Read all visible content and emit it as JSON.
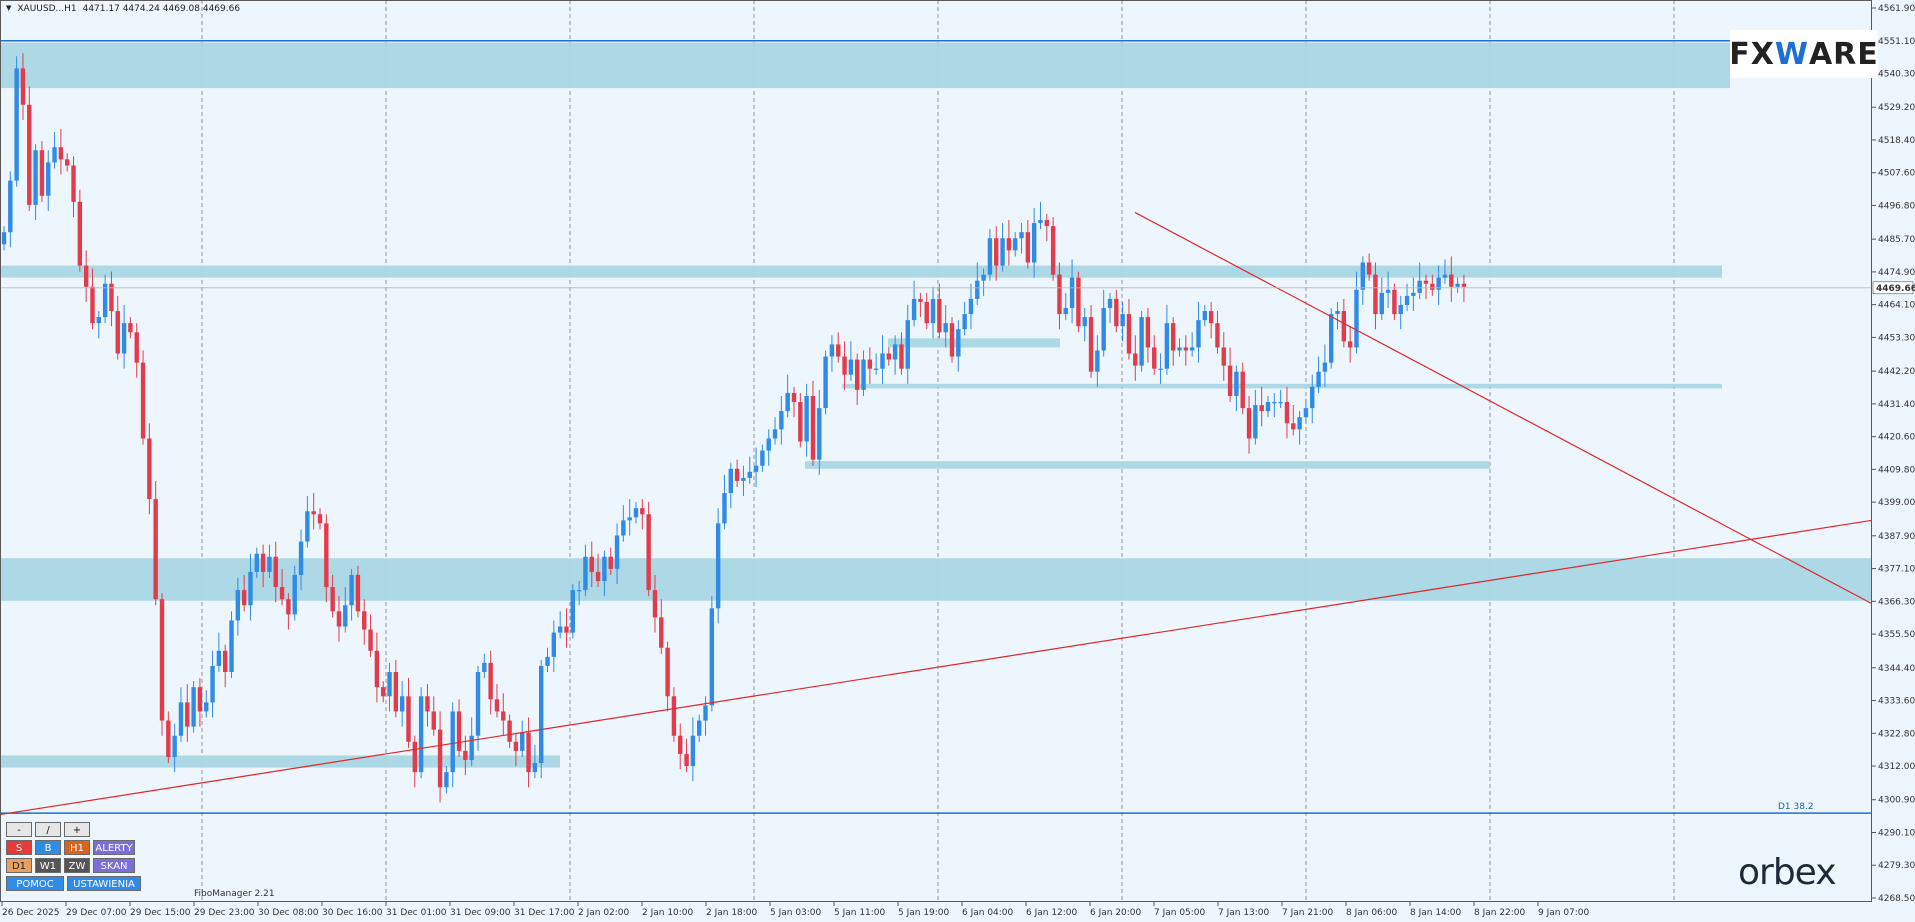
{
  "header": {
    "symbol": "XAUUSD...H1",
    "ohlc": "4471.17 4474.24 4469.08 4469.66"
  },
  "price_axis": {
    "ticks": [
      4561.9,
      4551.1,
      4540.3,
      4529.2,
      4518.4,
      4507.6,
      4496.8,
      4485.7,
      4474.9,
      4464.1,
      4453.3,
      4442.2,
      4431.4,
      4420.6,
      4409.8,
      4399.0,
      4387.9,
      4377.1,
      4366.3,
      4355.5,
      4344.4,
      4333.6,
      4322.8,
      4312.0,
      4300.9,
      4290.1,
      4279.3,
      4268.5
    ],
    "current_price_label": "4469.66"
  },
  "time_axis": {
    "labels": [
      "26 Dec 2025",
      "29 Dec 07:00",
      "29 Dec 15:00",
      "29 Dec 23:00",
      "30 Dec 08:00",
      "30 Dec 16:00",
      "31 Dec 01:00",
      "31 Dec 09:00",
      "31 Dec 17:00",
      "2 Jan 02:00",
      "2 Jan 10:00",
      "2 Jan 18:00",
      "5 Jan 03:00",
      "5 Jan 11:00",
      "5 Jan 19:00",
      "6 Jan 04:00",
      "6 Jan 12:00",
      "6 Jan 20:00",
      "7 Jan 05:00",
      "7 Jan 13:00",
      "7 Jan 21:00",
      "8 Jan 06:00",
      "8 Jan 14:00",
      "8 Jan 22:00",
      "9 Jan 07:00"
    ]
  },
  "logos": {
    "fxware_prefix": "FX",
    "fxware_mid": "W",
    "fxware_suffix": "ARE",
    "orbex": "orbex"
  },
  "panel": {
    "row0": [
      "-",
      "/",
      "+"
    ],
    "row1": [
      {
        "label": "S",
        "color": "#e53b3b"
      },
      {
        "label": "B",
        "color": "#2f8be6"
      },
      {
        "label": "H1",
        "color": "#d86420"
      },
      {
        "label": "ALERTY",
        "color": "#7a6fd8"
      }
    ],
    "row2": [
      {
        "label": "D1",
        "color": "#e8a060"
      },
      {
        "label": "W1",
        "color": "#555555"
      },
      {
        "label": "ZW",
        "color": "#555555"
      },
      {
        "label": "SKAN",
        "color": "#7a6fd8"
      }
    ],
    "row3": [
      {
        "label": "POMOC",
        "color": "#2f8be6"
      },
      {
        "label": "USTAWIENIA",
        "color": "#2f8be6"
      }
    ]
  },
  "fibo_manager": "FiboManager 2.21",
  "d1_label": "D1 38.2",
  "colors": {
    "bull": "#2f8be6",
    "bear": "#e23b4b",
    "zone": "#a9d6e5",
    "trend": "#e0262b",
    "level_line": "#1f6fd1",
    "background": "#eef6fd"
  },
  "chart_data": {
    "type": "candlestick",
    "symbol": "XAUUSD",
    "timeframe": "H1",
    "ylim": [
      4268.5,
      4561.9
    ],
    "zones": [
      {
        "from": 4535.5,
        "to": 4550.5
      },
      {
        "from": 4473.0,
        "to": 4477.0
      },
      {
        "from": 4450.0,
        "to": 4453.0
      },
      {
        "from": 4436.5,
        "to": 4438.0
      },
      {
        "from": 4410.0,
        "to": 4412.5
      },
      {
        "from": 4366.5,
        "to": 4380.5
      },
      {
        "from": 4311.5,
        "to": 4315.5
      }
    ],
    "horizontal_levels": [
      4551.1,
      4296.5
    ],
    "trendlines": [
      {
        "from": [
          "26 Dec 2025",
          4296.0
        ],
        "to": [
          "9 Jan 23:00",
          4393.0
        ]
      },
      {
        "from": [
          "6 Jan 20:00",
          4494.5
        ],
        "to": [
          "9 Jan 23:00",
          4365.5
        ]
      }
    ],
    "closes": [
      4488,
      4505,
      4542,
      4530,
      4497,
      4515,
      4500,
      4511,
      4516,
      4512,
      4510,
      4498,
      4477,
      4470,
      4458,
      4460,
      4471,
      4462,
      4448,
      4458,
      4455,
      4445,
      4420,
      4400,
      4367,
      4327,
      4315,
      4322,
      4333,
      4325,
      4338,
      4330,
      4333,
      4345,
      4350,
      4343,
      4360,
      4370,
      4365,
      4376,
      4382,
      4376,
      4381,
      4371,
      4367,
      4362,
      4375,
      4386,
      4396,
      4395,
      4392,
      4371,
      4363,
      4358,
      4365,
      4375,
      4363,
      4357,
      4350,
      4338,
      4335,
      4343,
      4330,
      4335,
      4320,
      4310,
      4335,
      4330,
      4324,
      4305,
      4310,
      4330,
      4317,
      4314,
      4322,
      4343,
      4346,
      4334,
      4330,
      4327,
      4320,
      4317,
      4323,
      4310,
      4313,
      4345,
      4348,
      4356,
      4358,
      4356,
      4370,
      4370,
      4381,
      4376,
      4373,
      4381,
      4377,
      4388,
      4393,
      4394,
      4397,
      4395,
      4370,
      4361,
      4351,
      4335,
      4322,
      4316,
      4312,
      4322,
      4327,
      4332,
      4364,
      4392,
      4402,
      4410,
      4406,
      4407,
      4409,
      4411,
      4416,
      4420,
      4423,
      4429,
      4435,
      4432,
      4419,
      4434,
      4413,
      4430,
      4447,
      4451,
      4447,
      4441,
      4446,
      4436,
      4446,
      4443,
      4443,
      4448,
      4446,
      4451,
      4443,
      4459,
      4466,
      4465,
      4458,
      4466,
      4455,
      4458,
      4447,
      4456,
      4461,
      4466,
      4472,
      4474,
      4486,
      4477,
      4486,
      4482,
      4486,
      4488,
      4478,
      4491,
      4492,
      4490,
      4474,
      4461,
      4463,
      4473,
      4457,
      4460,
      4442,
      4449,
      4463,
      4466,
      4457,
      4461,
      4448,
      4444,
      4460,
      4450,
      4443,
      4443,
      4458,
      4449,
      4450,
      4449,
      4450,
      4459,
      4462,
      4458,
      4450,
      4444,
      4434,
      4442,
      4430,
      4420,
      4431,
      4429,
      4432,
      4432,
      4432,
      4425,
      4423,
      4427,
      4430,
      4437,
      4442,
      4445,
      4461,
      4462,
      4452,
      4450,
      4469,
      4478,
      4474,
      4461,
      4468,
      4469,
      4461,
      4464,
      4467,
      4468,
      4472,
      4471,
      4469,
      4473,
      4474,
      4470,
      4471,
      4470
    ]
  }
}
